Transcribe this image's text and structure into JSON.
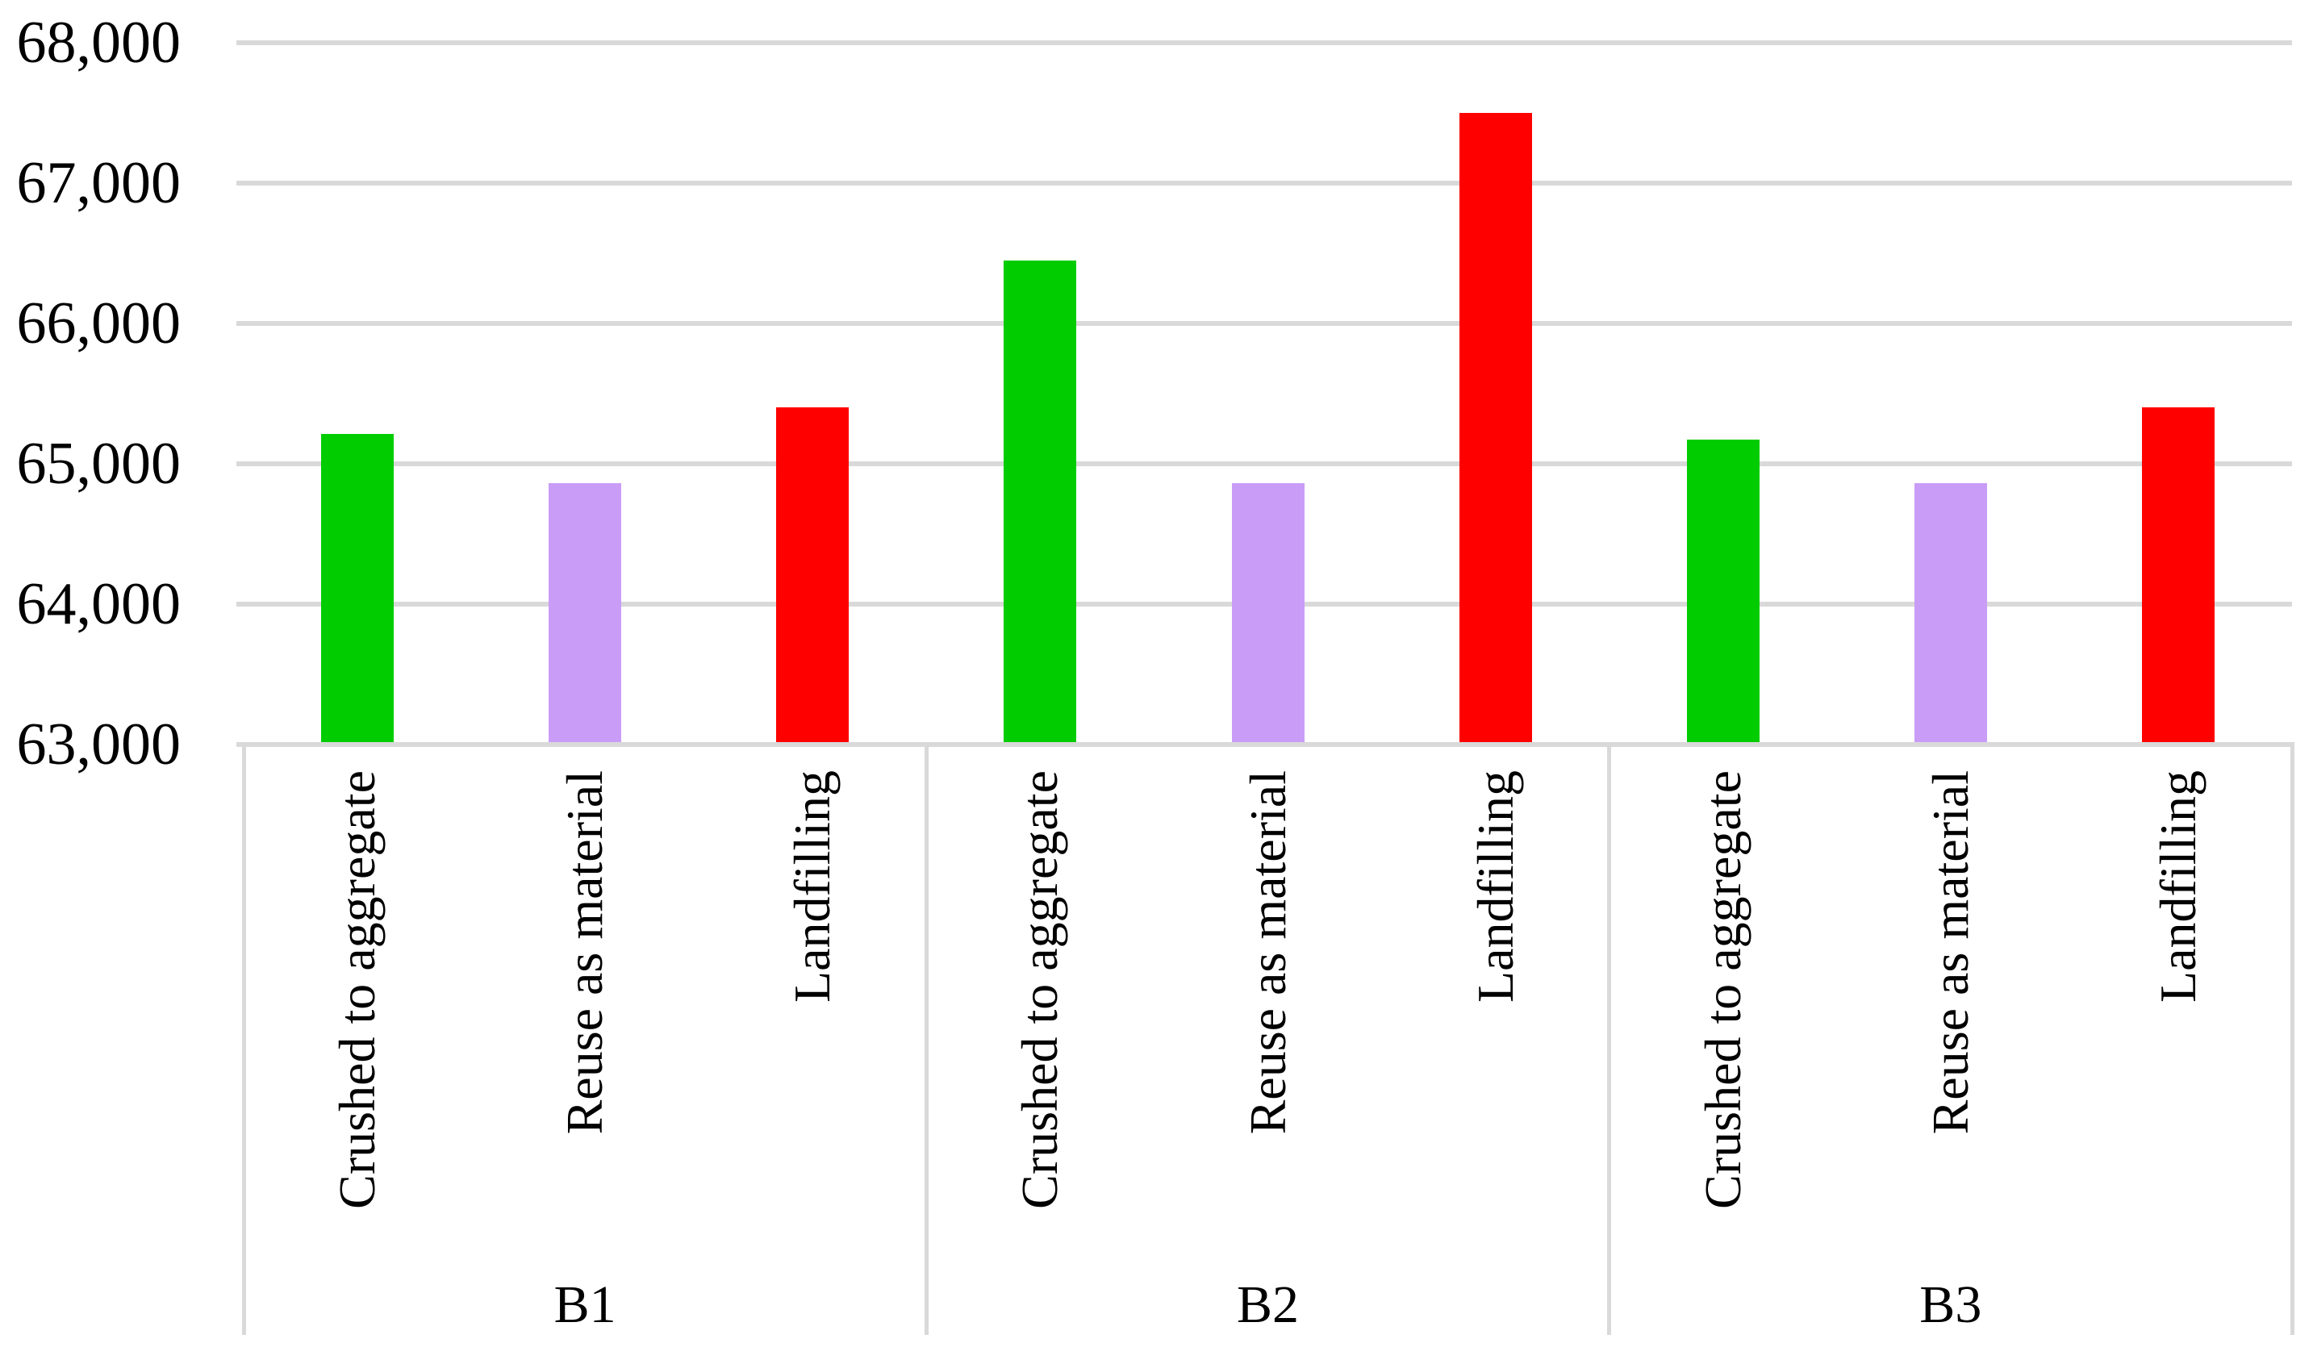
{
  "chart_data": {
    "type": "bar",
    "title": "",
    "xlabel": "",
    "ylabel": "",
    "ylim": [
      63000,
      68000
    ],
    "ytick_interval": 1000,
    "grid": true,
    "legend": false,
    "yticks": [
      {
        "value": 63000,
        "label": "63,000"
      },
      {
        "value": 64000,
        "label": "64,000"
      },
      {
        "value": 65000,
        "label": "65,000"
      },
      {
        "value": 66000,
        "label": "66,000"
      },
      {
        "value": 67000,
        "label": "67,000"
      },
      {
        "value": 68000,
        "label": "68,000"
      }
    ],
    "bar_colors": {
      "Crushed to aggregate": "#00CC00",
      "Reuse as material": "#C99CF8",
      "Landfilling": "#FF0000"
    },
    "groups": [
      {
        "label": "B1",
        "bars": [
          {
            "category": "Crushed to aggregate",
            "value": 65210
          },
          {
            "category": "Reuse as material",
            "value": 64860
          },
          {
            "category": "Landfilling",
            "value": 65400
          }
        ]
      },
      {
        "label": "B2",
        "bars": [
          {
            "category": "Crushed to aggregate",
            "value": 66450
          },
          {
            "category": "Reuse as material",
            "value": 64860
          },
          {
            "category": "Landfilling",
            "value": 67500
          }
        ]
      },
      {
        "label": "B3",
        "bars": [
          {
            "category": "Crushed to aggregate",
            "value": 65170
          },
          {
            "category": "Reuse as material",
            "value": 64860
          },
          {
            "category": "Landfilling",
            "value": 65400
          }
        ]
      }
    ],
    "colors": {
      "gridline": "#D9D9D9",
      "axis_line": "#D9D9D9",
      "divider": "#D9D9D9",
      "text": "#000000",
      "background": "#FFFFFF"
    }
  }
}
